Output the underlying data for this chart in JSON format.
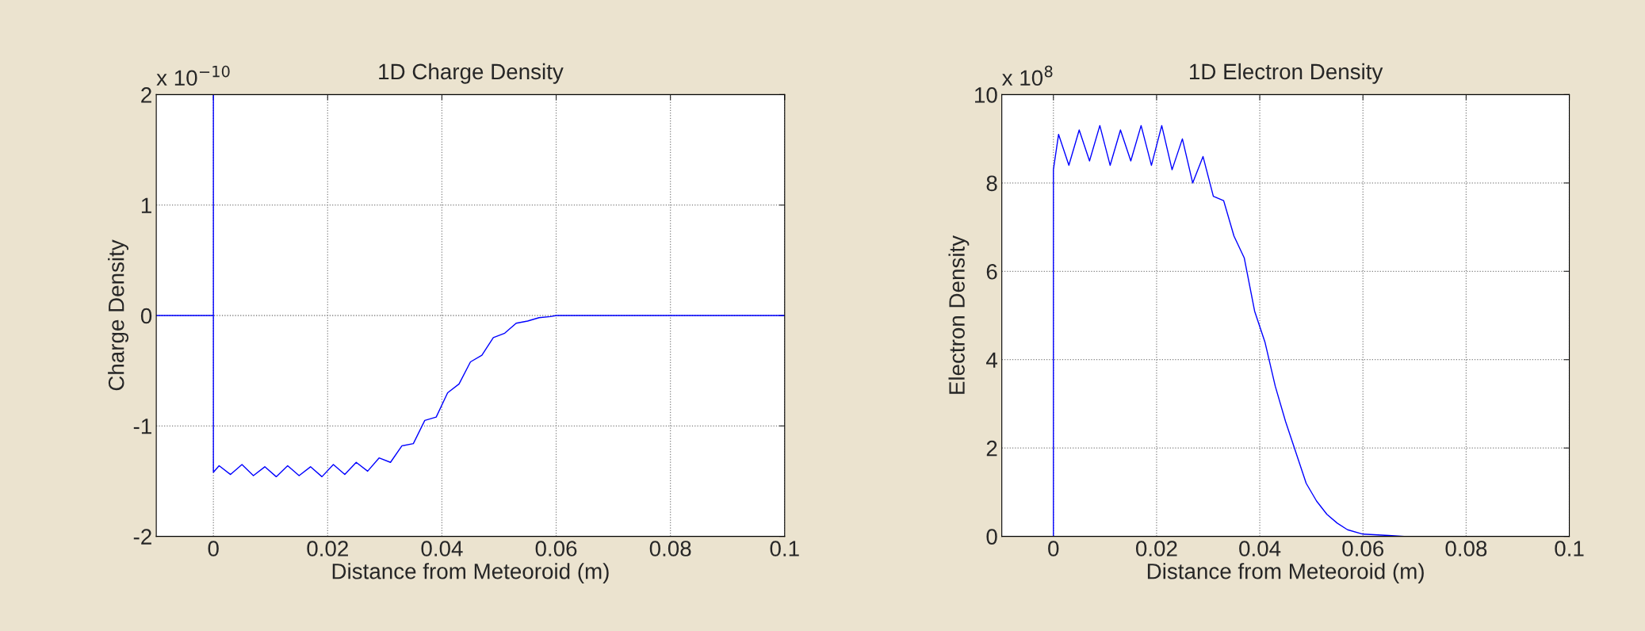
{
  "chart_data": [
    {
      "type": "line",
      "title": "1D Charge Density",
      "xlabel": "Distance from Meteoroid (m)",
      "ylabel": "Charge Density",
      "annotations": [
        "x 10$^{−10}$"
      ],
      "series": [
        {
          "color": "#0000ff",
          "x": [
            -0.01,
            0,
            0,
            0,
            0.001,
            0.003,
            0.005,
            0.007,
            0.009,
            0.011,
            0.013,
            0.015,
            0.017,
            0.019,
            0.021,
            0.023,
            0.025,
            0.027,
            0.029,
            0.031,
            0.033,
            0.035,
            0.037,
            0.039,
            0.041,
            0.043,
            0.045,
            0.047,
            0.049,
            0.051,
            0.053,
            0.055,
            0.057,
            0.059,
            0.06,
            0.1
          ],
          "values": [
            0,
            0,
            2,
            -1.42,
            -1.36,
            -1.44,
            -1.35,
            -1.45,
            -1.37,
            -1.46,
            -1.36,
            -1.45,
            -1.37,
            -1.46,
            -1.35,
            -1.44,
            -1.33,
            -1.41,
            -1.29,
            -1.33,
            -1.18,
            -1.16,
            -0.95,
            -0.92,
            -0.7,
            -0.62,
            -0.42,
            -0.36,
            -0.2,
            -0.16,
            -0.07,
            -0.05,
            -0.02,
            -0.01,
            0,
            0
          ]
        }
      ],
      "xlim": [
        -0.01,
        0.1
      ],
      "ylim": [
        -2,
        2
      ],
      "xticks": [
        0,
        0.02,
        0.04,
        0.06,
        0.08,
        0.1
      ],
      "yticks": [
        -2,
        -1,
        0,
        1,
        2
      ],
      "grid": true
    },
    {
      "type": "line",
      "title": "1D Electron Density",
      "xlabel": "Distance from Meteoroid (m)",
      "ylabel": "Electron Density",
      "annotations": [
        "x 10$^{8}$"
      ],
      "series": [
        {
          "color": "#0000ff",
          "x": [
            -0.01,
            0,
            0,
            0.001,
            0.003,
            0.005,
            0.007,
            0.009,
            0.011,
            0.013,
            0.015,
            0.017,
            0.019,
            0.021,
            0.023,
            0.025,
            0.027,
            0.029,
            0.031,
            0.033,
            0.035,
            0.037,
            0.039,
            0.041,
            0.043,
            0.045,
            0.047,
            0.049,
            0.051,
            0.053,
            0.055,
            0.057,
            0.06,
            0.065,
            0.068,
            0.1
          ],
          "values": [
            0,
            0,
            8.3,
            9.1,
            8.4,
            9.2,
            8.5,
            9.3,
            8.4,
            9.2,
            8.5,
            9.3,
            8.4,
            9.3,
            8.3,
            9.0,
            8.0,
            8.6,
            7.7,
            7.6,
            6.8,
            6.3,
            5.1,
            4.4,
            3.4,
            2.6,
            1.9,
            1.2,
            0.8,
            0.5,
            0.3,
            0.15,
            0.05,
            0.02,
            0,
            0
          ]
        }
      ],
      "xlim": [
        -0.01,
        0.1
      ],
      "ylim": [
        0,
        10
      ],
      "xticks": [
        0,
        0.02,
        0.04,
        0.06,
        0.08,
        0.1
      ],
      "yticks": [
        0,
        2,
        4,
        6,
        8,
        10
      ],
      "grid": true
    }
  ]
}
